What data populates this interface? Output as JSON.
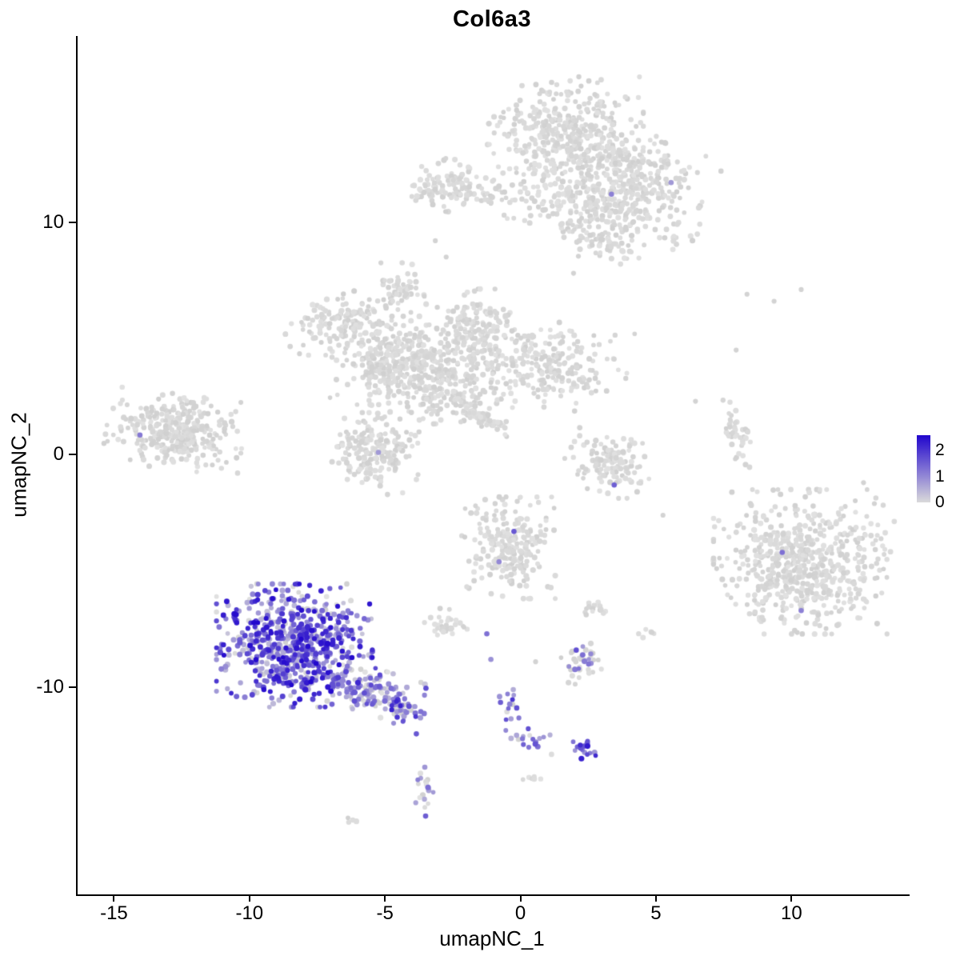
{
  "chart_data": {
    "type": "scatter",
    "title": "Col6a3",
    "xlabel": "umapNC_1",
    "ylabel": "umapNC_2",
    "xlim": [
      -16.4,
      14.3
    ],
    "ylim": [
      -18.9,
      18.0
    ],
    "grid": false,
    "x_tick_values": [
      -15,
      -10,
      -5,
      0,
      5,
      10
    ],
    "x_tick_labels": [
      "-15",
      "-10",
      "-5",
      "0",
      "5",
      "10"
    ],
    "y_tick_values": [
      10,
      0,
      -10
    ],
    "y_tick_labels": [
      "10",
      "0",
      "-10"
    ],
    "legend": {
      "position": "right",
      "tick_values": [
        2,
        1,
        0
      ],
      "tick_labels": [
        "2",
        "1",
        "0"
      ],
      "vmax": 2.6,
      "color_low": "#dadada",
      "color_high": "#2106cd"
    },
    "point_color_zero": "#d9d9d9",
    "clusters": [
      {
        "name": "top-main",
        "cx": 1.6,
        "cy": 13.6,
        "sx": 1.25,
        "sy": 1.15,
        "rot": 0,
        "n": 420,
        "expr_frac": 0,
        "expr_lo": 0,
        "expr_hi": 0
      },
      {
        "name": "top-right-arm",
        "cx": 4.0,
        "cy": 12.1,
        "sx": 1.3,
        "sy": 0.8,
        "rot": -25,
        "n": 260,
        "expr_frac": 0,
        "expr_lo": 0,
        "expr_hi": 0
      },
      {
        "name": "top-lower-arm",
        "cx": 2.9,
        "cy": 10.4,
        "sx": 1.6,
        "sy": 0.75,
        "rot": -12,
        "n": 230,
        "expr_frac": 0,
        "expr_lo": 0,
        "expr_hi": 0
      },
      {
        "name": "top-left-blob",
        "cx": -2.7,
        "cy": 11.6,
        "sx": 0.75,
        "sy": 0.5,
        "rot": 0,
        "n": 95,
        "expr_frac": 0,
        "expr_lo": 0,
        "expr_hi": 0
      },
      {
        "name": "top-left-trail",
        "cx": -1.1,
        "cy": 11.2,
        "sx": 0.95,
        "sy": 0.3,
        "rot": 0,
        "n": 38,
        "expr_frac": 0,
        "expr_lo": 0,
        "expr_hi": 0
      },
      {
        "name": "top-south-spur",
        "cx": 3.1,
        "cy": 9.0,
        "sx": 0.5,
        "sy": 0.35,
        "rot": 0,
        "n": 35,
        "expr_frac": 0,
        "expr_lo": 0,
        "expr_hi": 0
      },
      {
        "name": "mid-west-arm",
        "cx": -6.6,
        "cy": 5.7,
        "sx": 0.95,
        "sy": 0.5,
        "rot": 18,
        "n": 130,
        "expr_frac": 0,
        "expr_lo": 0,
        "expr_hi": 0
      },
      {
        "name": "mid-north-knob",
        "cx": -4.5,
        "cy": 7.1,
        "sx": 0.45,
        "sy": 0.5,
        "rot": 0,
        "n": 55,
        "expr_frac": 0,
        "expr_lo": 0,
        "expr_hi": 0
      },
      {
        "name": "mid-west-core",
        "cx": -4.9,
        "cy": 4.2,
        "sx": 0.95,
        "sy": 0.85,
        "rot": 0,
        "n": 230,
        "expr_frac": 0,
        "expr_lo": 0,
        "expr_hi": 0
      },
      {
        "name": "mid-core",
        "cx": -3.0,
        "cy": 3.4,
        "sx": 1.15,
        "sy": 0.95,
        "rot": 0,
        "n": 320,
        "expr_frac": 0,
        "expr_lo": 0,
        "expr_hi": 0
      },
      {
        "name": "mid-north-arm",
        "cx": -1.7,
        "cy": 5.4,
        "sx": 0.8,
        "sy": 0.75,
        "rot": 0,
        "n": 150,
        "expr_frac": 0,
        "expr_lo": 0,
        "expr_hi": 0
      },
      {
        "name": "mid-east-lobe",
        "cx": 0.9,
        "cy": 3.9,
        "sx": 1.3,
        "sy": 0.8,
        "rot": -10,
        "n": 230,
        "expr_frac": 0,
        "expr_lo": 0,
        "expr_hi": 0
      },
      {
        "name": "mid-streak",
        "cx": -1.6,
        "cy": 1.7,
        "sx": 0.6,
        "sy": 0.12,
        "rot": -38,
        "n": 70,
        "expr_frac": 0,
        "expr_lo": 0,
        "expr_hi": 0
      },
      {
        "name": "mid-south-blob",
        "cx": -5.4,
        "cy": 0.2,
        "sx": 0.7,
        "sy": 0.85,
        "rot": 0,
        "n": 200,
        "expr_frac": 0,
        "expr_lo": 0,
        "expr_hi": 0
      },
      {
        "name": "far-west",
        "cx": -12.8,
        "cy": 1.0,
        "sx": 1.1,
        "sy": 0.7,
        "rot": -8,
        "n": 330,
        "expr_frac": 0,
        "expr_lo": 0,
        "expr_hi": 0
      },
      {
        "name": "center-crescent",
        "cx": 3.2,
        "cy": -0.4,
        "sx": 0.7,
        "sy": 0.55,
        "rot": -20,
        "n": 125,
        "expr_frac": 0,
        "expr_lo": 0,
        "expr_hi": 0
      },
      {
        "name": "east-strip",
        "cx": 7.9,
        "cy": 0.8,
        "sx": 0.2,
        "sy": 0.7,
        "rot": 12,
        "n": 42,
        "expr_frac": 0,
        "expr_lo": 0,
        "expr_hi": 0
      },
      {
        "name": "east-large",
        "cx": 10.4,
        "cy": -4.6,
        "sx": 1.45,
        "sy": 1.35,
        "rot": 0,
        "n": 640,
        "expr_frac": 0,
        "expr_lo": 0,
        "expr_hi": 0
      },
      {
        "name": "center-south",
        "cx": -0.5,
        "cy": -4.0,
        "sx": 0.75,
        "sy": 0.95,
        "rot": 0,
        "n": 235,
        "expr_frac": 0,
        "expr_lo": 0,
        "expr_hi": 0
      },
      {
        "name": "small-east-dots",
        "cx": 2.7,
        "cy": -6.6,
        "sx": 0.3,
        "sy": 0.18,
        "rot": 0,
        "n": 14,
        "expr_frac": 0,
        "expr_lo": 0,
        "expr_hi": 0
      },
      {
        "name": "small-west-dots",
        "cx": -2.7,
        "cy": -7.3,
        "sx": 0.4,
        "sy": 0.3,
        "rot": 0,
        "n": 32,
        "expr_frac": 0,
        "expr_lo": 0,
        "expr_hi": 0
      },
      {
        "name": "tiny-east",
        "cx": 4.6,
        "cy": -7.7,
        "sx": 0.15,
        "sy": 0.12,
        "rot": 0,
        "n": 6,
        "expr_frac": 0,
        "expr_lo": 0,
        "expr_hi": 0
      },
      {
        "name": "expressing-main",
        "cx": -8.4,
        "cy": -8.2,
        "sx": 1.25,
        "sy": 1.15,
        "rot": 0,
        "n": 700,
        "expr_frac": 0.86,
        "expr_lo": 0.25,
        "expr_hi": 2.6
      },
      {
        "name": "expressing-tail",
        "cx": -5.7,
        "cy": -10.1,
        "sx": 1.0,
        "sy": 0.42,
        "rot": -20,
        "n": 150,
        "expr_frac": 0.7,
        "expr_lo": 0.2,
        "expr_hi": 1.8
      },
      {
        "name": "expressing-tip",
        "cx": -4.3,
        "cy": -10.9,
        "sx": 0.3,
        "sy": 0.28,
        "rot": 0,
        "n": 26,
        "expr_frac": 0.8,
        "expr_lo": 0.5,
        "expr_hi": 2.3
      },
      {
        "name": "small-southeast",
        "cx": 2.2,
        "cy": -8.9,
        "sx": 0.33,
        "sy": 0.42,
        "rot": 0,
        "n": 40,
        "expr_frac": 0.1,
        "expr_lo": 0.5,
        "expr_hi": 1.5
      },
      {
        "name": "chain-vertical",
        "cx": -0.45,
        "cy": -11.2,
        "sx": 0.17,
        "sy": 0.55,
        "rot": 0,
        "n": 18,
        "expr_frac": 0.85,
        "expr_lo": 0.5,
        "expr_hi": 2.1
      },
      {
        "name": "chain-diagonal",
        "cx": 0.35,
        "cy": -12.3,
        "sx": 0.45,
        "sy": 0.25,
        "rot": -28,
        "n": 14,
        "expr_frac": 0.8,
        "expr_lo": 0.4,
        "expr_hi": 1.8
      },
      {
        "name": "south-blob",
        "cx": 2.25,
        "cy": -12.6,
        "sx": 0.28,
        "sy": 0.2,
        "rot": 0,
        "n": 16,
        "expr_frac": 0.85,
        "expr_lo": 0.8,
        "expr_hi": 2.4
      },
      {
        "name": "south-column",
        "cx": -3.6,
        "cy": -14.3,
        "sx": 0.14,
        "sy": 0.6,
        "rot": 0,
        "n": 18,
        "expr_frac": 0.55,
        "expr_lo": 0.3,
        "expr_hi": 1.7
      },
      {
        "name": "tiny-south",
        "cx": 0.4,
        "cy": -13.9,
        "sx": 0.18,
        "sy": 0.12,
        "rot": 0,
        "n": 6,
        "expr_frac": 0,
        "expr_lo": 0,
        "expr_hi": 0
      },
      {
        "name": "tiny-southwest",
        "cx": -6.2,
        "cy": -15.7,
        "sx": 0.15,
        "sy": 0.1,
        "rot": 0,
        "n": 4,
        "expr_frac": 0,
        "expr_lo": 0,
        "expr_hi": 0
      }
    ],
    "extra_points_gray": [
      [
        8.3,
        6.9
      ],
      [
        9.3,
        6.6
      ],
      [
        10.3,
        7.1
      ],
      [
        7.9,
        4.5
      ],
      [
        6.4,
        2.3
      ],
      [
        -3.2,
        9.2
      ],
      [
        -2.8,
        8.5
      ],
      [
        1.9,
        7.8
      ],
      [
        13.0,
        -2.1
      ],
      [
        12.6,
        -1.2
      ],
      [
        5.2,
        -2.6
      ],
      [
        0.5,
        -8.9
      ]
    ],
    "extra_points_expressing": [
      [
        -14.1,
        0.85,
        1.2
      ],
      [
        3.3,
        11.2,
        1.1
      ],
      [
        5.5,
        11.7,
        0.8
      ],
      [
        3.4,
        -1.3,
        1.5
      ],
      [
        -0.3,
        -3.3,
        1.6
      ],
      [
        -0.85,
        -4.6,
        1.0
      ],
      [
        9.6,
        -4.2,
        1.3
      ],
      [
        10.3,
        -6.7,
        1.1
      ],
      [
        2.0,
        -8.4,
        1.7
      ],
      [
        -1.3,
        -7.7,
        1.3
      ],
      [
        -1.15,
        -8.8,
        0.9
      ],
      [
        -5.3,
        0.1,
        0.8
      ],
      [
        -3.9,
        -12.0,
        1.6
      ]
    ]
  }
}
